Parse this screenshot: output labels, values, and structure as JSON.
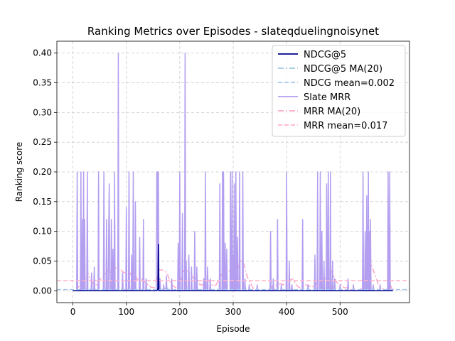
{
  "chart_data": {
    "type": "line",
    "title": "Ranking Metrics over Episodes - slateqduelingnoisynet",
    "xlabel": "Episode",
    "ylabel": "Ranking score",
    "xlim": [
      -30,
      630
    ],
    "ylim": [
      -0.02,
      0.42
    ],
    "xticks": [
      0,
      100,
      200,
      300,
      400,
      500
    ],
    "yticks": [
      0.0,
      0.05,
      0.1,
      0.15,
      0.2,
      0.25,
      0.3,
      0.35,
      0.4
    ],
    "xtick_labels": [
      "0",
      "100",
      "200",
      "300",
      "400",
      "500"
    ],
    "ytick_labels": [
      "0.00",
      "0.05",
      "0.10",
      "0.15",
      "0.20",
      "0.25",
      "0.30",
      "0.35",
      "0.40"
    ],
    "grid": true,
    "legend_position": "top-right",
    "n_episodes": 600,
    "series": [
      {
        "name": "NDCG@5",
        "color": "#00008b",
        "style": "solid",
        "spikes": [
          [
            158,
            0.002
          ],
          [
            159,
            0.003
          ],
          [
            160,
            0.078
          ]
        ]
      },
      {
        "name": "NDCG@5 MA(20)",
        "color": "#9ecae1",
        "style": "dashdot",
        "points": [
          [
            0,
            0.0
          ],
          [
            157,
            0.0
          ],
          [
            160,
            0.004
          ],
          [
            178,
            0.004
          ],
          [
            180,
            0.0
          ],
          [
            599,
            0.0
          ]
        ]
      },
      {
        "name": "NDCG mean=0.002",
        "color": "#a6c8f0",
        "style": "dashed",
        "constant": 0.002
      },
      {
        "name": "Slate MRR",
        "color": "#b39ef0",
        "style": "solid",
        "spikes": [
          [
            8,
            0.2
          ],
          [
            15,
            0.2
          ],
          [
            18,
            0.12
          ],
          [
            20,
            0.2
          ],
          [
            22,
            0.12
          ],
          [
            27,
            0.2
          ],
          [
            35,
            0.03
          ],
          [
            40,
            0.04
          ],
          [
            48,
            0.2
          ],
          [
            58,
            0.2
          ],
          [
            63,
            0.12
          ],
          [
            67,
            0.1
          ],
          [
            68,
            0.18
          ],
          [
            72,
            0.12
          ],
          [
            75,
            0.07
          ],
          [
            78,
            0.2
          ],
          [
            85,
            0.4
          ],
          [
            93,
            0.03
          ],
          [
            100,
            0.14
          ],
          [
            105,
            0.2
          ],
          [
            110,
            0.06
          ],
          [
            113,
            0.2
          ],
          [
            117,
            0.15
          ],
          [
            125,
            0.09
          ],
          [
            132,
            0.12
          ],
          [
            137,
            0.02
          ],
          [
            157,
            0.2
          ],
          [
            158,
            0.2
          ],
          [
            160,
            0.2
          ],
          [
            163,
            0.02
          ],
          [
            170,
            0.01
          ],
          [
            175,
            0.025
          ],
          [
            185,
            0.02
          ],
          [
            197,
            0.08
          ],
          [
            200,
            0.2
          ],
          [
            205,
            0.13
          ],
          [
            210,
            0.4
          ],
          [
            212,
            0.05
          ],
          [
            217,
            0.06
          ],
          [
            222,
            0.04
          ],
          [
            228,
            0.1
          ],
          [
            232,
            0.04
          ],
          [
            245,
            0.02
          ],
          [
            248,
            0.2
          ],
          [
            252,
            0.04
          ],
          [
            257,
            0.02
          ],
          [
            275,
            0.18
          ],
          [
            280,
            0.2
          ],
          [
            282,
            0.2
          ],
          [
            285,
            0.08
          ],
          [
            288,
            0.07
          ],
          [
            295,
            0.2
          ],
          [
            298,
            0.2
          ],
          [
            300,
            0.06
          ],
          [
            302,
            0.18
          ],
          [
            305,
            0.2
          ],
          [
            308,
            0.09
          ],
          [
            312,
            0.2
          ],
          [
            318,
            0.2
          ],
          [
            322,
            0.02
          ],
          [
            330,
            0.01
          ],
          [
            345,
            0.01
          ],
          [
            370,
            0.1
          ],
          [
            375,
            0.02
          ],
          [
            383,
            0.12
          ],
          [
            390,
            0.01
          ],
          [
            400,
            0.2
          ],
          [
            405,
            0.05
          ],
          [
            410,
            0.01
          ],
          [
            430,
            0.12
          ],
          [
            440,
            0.01
          ],
          [
            453,
            0.06
          ],
          [
            458,
            0.2
          ],
          [
            463,
            0.2
          ],
          [
            466,
            0.1
          ],
          [
            470,
            0.05
          ],
          [
            475,
            0.18
          ],
          [
            478,
            0.2
          ],
          [
            482,
            0.2
          ],
          [
            486,
            0.05
          ],
          [
            490,
            0.02
          ],
          [
            500,
            0.01
          ],
          [
            515,
            0.02
          ],
          [
            525,
            0.01
          ],
          [
            543,
            0.2
          ],
          [
            547,
            0.1
          ],
          [
            550,
            0.16
          ],
          [
            553,
            0.2
          ],
          [
            555,
            0.1
          ],
          [
            557,
            0.12
          ],
          [
            562,
            0.01
          ],
          [
            575,
            0.01
          ],
          [
            590,
            0.2
          ],
          [
            593,
            0.2
          ]
        ]
      },
      {
        "name": "MRR MA(20)",
        "color": "#ffa6c9",
        "style": "dashdot",
        "points": [
          [
            0,
            0.0
          ],
          [
            8,
            0.0
          ],
          [
            12,
            0.01
          ],
          [
            18,
            0.02
          ],
          [
            24,
            0.02
          ],
          [
            28,
            0.03
          ],
          [
            32,
            0.02
          ],
          [
            40,
            0.01
          ],
          [
            46,
            0.01
          ],
          [
            52,
            0.02
          ],
          [
            58,
            0.025
          ],
          [
            62,
            0.03
          ],
          [
            66,
            0.035
          ],
          [
            72,
            0.03
          ],
          [
            78,
            0.037
          ],
          [
            84,
            0.04
          ],
          [
            90,
            0.035
          ],
          [
            96,
            0.03
          ],
          [
            100,
            0.035
          ],
          [
            105,
            0.033
          ],
          [
            110,
            0.025
          ],
          [
            115,
            0.03
          ],
          [
            120,
            0.02
          ],
          [
            125,
            0.015
          ],
          [
            130,
            0.02
          ],
          [
            135,
            0.015
          ],
          [
            140,
            0.01
          ],
          [
            146,
            0.006
          ],
          [
            152,
            0.005
          ],
          [
            156,
            0.01
          ],
          [
            160,
            0.035
          ],
          [
            166,
            0.035
          ],
          [
            170,
            0.034
          ],
          [
            176,
            0.03
          ],
          [
            180,
            0.02
          ],
          [
            186,
            0.01
          ],
          [
            192,
            0.005
          ],
          [
            198,
            0.012
          ],
          [
            203,
            0.02
          ],
          [
            208,
            0.034
          ],
          [
            212,
            0.035
          ],
          [
            218,
            0.03
          ],
          [
            222,
            0.025
          ],
          [
            228,
            0.02
          ],
          [
            232,
            0.018
          ],
          [
            238,
            0.01
          ],
          [
            244,
            0.01
          ],
          [
            248,
            0.015
          ],
          [
            252,
            0.02
          ],
          [
            256,
            0.015
          ],
          [
            262,
            0.008
          ],
          [
            268,
            0.01
          ],
          [
            274,
            0.02
          ],
          [
            280,
            0.03
          ],
          [
            286,
            0.035
          ],
          [
            292,
            0.034
          ],
          [
            298,
            0.03
          ],
          [
            304,
            0.035
          ],
          [
            310,
            0.04
          ],
          [
            313,
            0.05
          ],
          [
            316,
            0.05
          ],
          [
            320,
            0.045
          ],
          [
            324,
            0.03
          ],
          [
            328,
            0.02
          ],
          [
            334,
            0.01
          ],
          [
            340,
            0.0
          ],
          [
            346,
            0.0
          ],
          [
            352,
            0.0
          ],
          [
            358,
            0.0
          ],
          [
            364,
            0.0
          ],
          [
            370,
            0.005
          ],
          [
            376,
            0.008
          ],
          [
            382,
            0.01
          ],
          [
            388,
            0.012
          ],
          [
            394,
            0.01
          ],
          [
            400,
            0.012
          ],
          [
            406,
            0.018
          ],
          [
            412,
            0.02
          ],
          [
            418,
            0.01
          ],
          [
            424,
            0.005
          ],
          [
            430,
            0.006
          ],
          [
            436,
            0.01
          ],
          [
            442,
            0.008
          ],
          [
            448,
            0.006
          ],
          [
            454,
            0.01
          ],
          [
            458,
            0.015
          ],
          [
            463,
            0.02
          ],
          [
            468,
            0.022
          ],
          [
            473,
            0.02
          ],
          [
            478,
            0.03
          ],
          [
            482,
            0.035
          ],
          [
            486,
            0.03
          ],
          [
            490,
            0.02
          ],
          [
            496,
            0.012
          ],
          [
            502,
            0.01
          ],
          [
            508,
            0.005
          ],
          [
            514,
            0.005
          ],
          [
            520,
            0.002
          ],
          [
            530,
            0.0
          ],
          [
            536,
            0.0
          ],
          [
            540,
            0.005
          ],
          [
            544,
            0.015
          ],
          [
            548,
            0.03
          ],
          [
            552,
            0.04
          ],
          [
            556,
            0.05
          ],
          [
            560,
            0.04
          ],
          [
            564,
            0.03
          ],
          [
            568,
            0.02
          ],
          [
            572,
            0.01
          ],
          [
            578,
            0.005
          ],
          [
            584,
            0.0
          ],
          [
            590,
            0.005
          ],
          [
            594,
            0.01
          ],
          [
            599,
            0.0
          ]
        ]
      },
      {
        "name": "MRR mean=0.017",
        "color": "#ffb3cc",
        "style": "dashed",
        "constant": 0.017
      }
    ]
  }
}
